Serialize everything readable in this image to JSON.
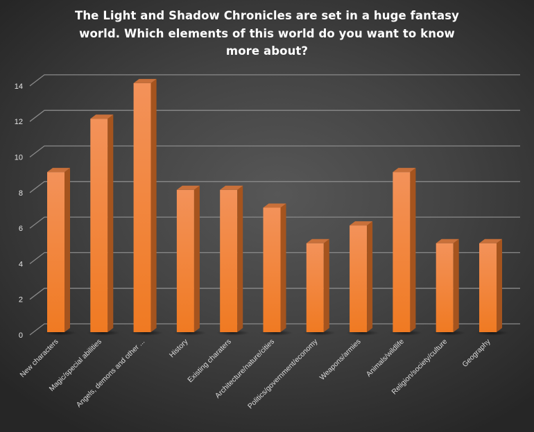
{
  "title": {
    "lines": [
      "The Light and Shadow Chronicles are set in a huge fantasy",
      "world. Which elements of this world do you want to know",
      "more about?"
    ]
  },
  "colors": {
    "bar_front_top": "#F3925A",
    "bar_front_bottom": "#F07A22",
    "bar_side": "#A5541E",
    "bar_top": "#C9703A",
    "gridline": "#8a8a8a",
    "text": "#FFFFFF"
  },
  "chart_data": {
    "type": "bar",
    "style": "3d-column",
    "title": "The Light and Shadow Chronicles are set in a huge fantasy world. Which elements of this world do you want to know more about?",
    "categories": [
      "New characters",
      "Magic/special abilities",
      "Angels, demons and other ...",
      "History",
      "Existing charaters",
      "Architecture/nature/cities",
      "Politics/government/economy",
      "Weapons/armies",
      "Animals/wildlife",
      "Religion/society/culture",
      "Geography"
    ],
    "values": [
      9,
      12,
      14,
      8,
      8,
      7,
      5,
      6,
      9,
      5,
      5
    ],
    "xlabel": "",
    "ylabel": "",
    "ylim": [
      0,
      14
    ],
    "yticks": [
      "0",
      "2",
      "4",
      "6",
      "8",
      "10",
      "12",
      "14"
    ],
    "grid": true,
    "legend": "none"
  }
}
